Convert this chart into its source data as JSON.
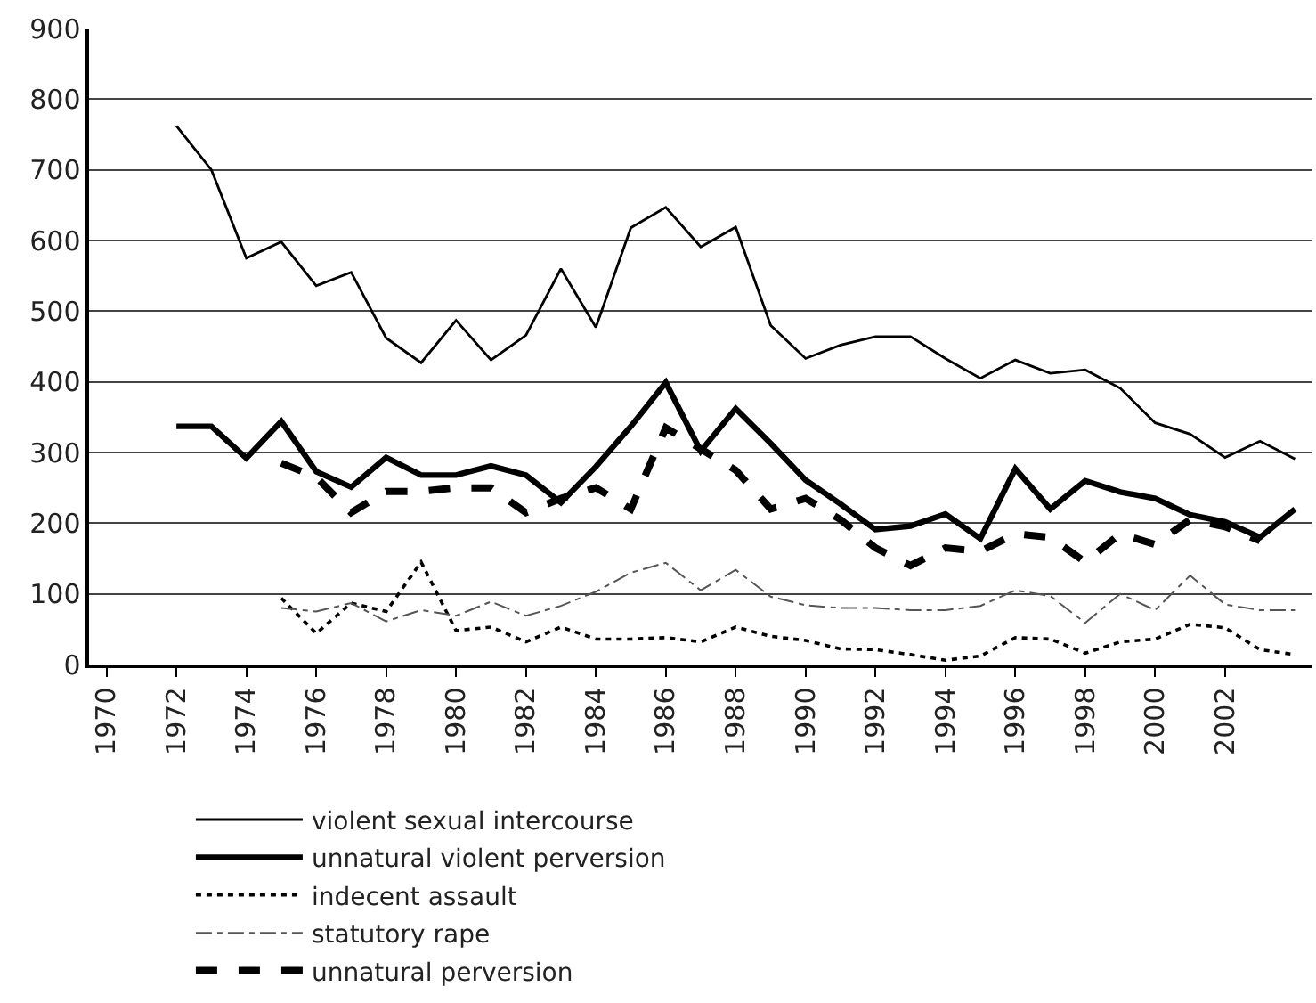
{
  "chart_data": {
    "type": "line",
    "xlim": [
      1969.5,
      2004.5
    ],
    "xticks": [
      1970,
      1972,
      1974,
      1976,
      1978,
      1980,
      1982,
      1984,
      1986,
      1988,
      1990,
      1992,
      1994,
      1996,
      1998,
      2000,
      2002
    ],
    "ylim": [
      0,
      900
    ],
    "yticks": [
      0,
      100,
      200,
      300,
      400,
      500,
      600,
      700,
      800,
      900
    ],
    "grid": "y",
    "legend": "bottom",
    "series": [
      {
        "name": "violent sexual intercourse",
        "color": "#000000",
        "line_style": "solid",
        "x": [
          1972,
          1973,
          1974,
          1975,
          1976,
          1977,
          1978,
          1979,
          1980,
          1981,
          1982,
          1983,
          1984,
          1985,
          1986,
          1987,
          1988,
          1989,
          1990,
          1991,
          1992,
          1993,
          1994,
          1995,
          1996,
          1997,
          1998,
          1999,
          2000,
          2001,
          2002,
          2003,
          2004
        ],
        "values": [
          762,
          700,
          575,
          598,
          536,
          555,
          462,
          427,
          487,
          431,
          466,
          560,
          477,
          618,
          647,
          591,
          619,
          480,
          433,
          452,
          464,
          464,
          433,
          405,
          431,
          412,
          417,
          391,
          342,
          326,
          293,
          316,
          291
        ]
      },
      {
        "name": "unnatural violent perversion",
        "color": "#000000",
        "line_style": "solid",
        "x": [
          1972,
          1973,
          1974,
          1975,
          1976,
          1977,
          1978,
          1979,
          1980,
          1981,
          1982,
          1983,
          1984,
          1985,
          1986,
          1987,
          1988,
          1989,
          1990,
          1991,
          1992,
          1993,
          1994,
          1995,
          1996,
          1997,
          1998,
          1999,
          2000,
          2001,
          2002,
          2003,
          2004
        ],
        "values": [
          337,
          337,
          292,
          344,
          273,
          251,
          293,
          268,
          268,
          281,
          268,
          229,
          280,
          337,
          399,
          302,
          362,
          313,
          261,
          227,
          191,
          196,
          213,
          178,
          277,
          220,
          260,
          244,
          235,
          212,
          202,
          180,
          220
        ]
      },
      {
        "name": "indecent assault",
        "color": "#000000",
        "line_style": "dotted",
        "x": [
          1975,
          1976,
          1977,
          1978,
          1979,
          1980,
          1981,
          1982,
          1983,
          1984,
          1985,
          1986,
          1987,
          1988,
          1989,
          1990,
          1991,
          1992,
          1993,
          1994,
          1995,
          1996,
          1997,
          1998,
          1999,
          2000,
          2001,
          2002,
          2003,
          2004
        ],
        "values": [
          94,
          44,
          87,
          75,
          145,
          48,
          53,
          32,
          53,
          36,
          36,
          38,
          32,
          53,
          40,
          34,
          22,
          21,
          14,
          6,
          12,
          38,
          36,
          16,
          32,
          36,
          57,
          52,
          21,
          14
        ]
      },
      {
        "name": "statutory rape",
        "color": "#555555",
        "line_style": "dashdot",
        "x": [
          1975,
          1976,
          1977,
          1978,
          1979,
          1980,
          1981,
          1982,
          1983,
          1984,
          1985,
          1986,
          1987,
          1988,
          1989,
          1990,
          1991,
          1992,
          1993,
          1994,
          1995,
          1996,
          1997,
          1998,
          1999,
          2000,
          2001,
          2002,
          2003,
          2004
        ],
        "values": [
          80,
          75,
          87,
          61,
          77,
          69,
          89,
          69,
          83,
          103,
          130,
          144,
          105,
          134,
          96,
          84,
          80,
          80,
          77,
          77,
          83,
          105,
          97,
          59,
          100,
          77,
          126,
          85,
          77,
          77
        ]
      },
      {
        "name": "unnatural perversion",
        "color": "#000000",
        "line_style": "dashed",
        "x": [
          1975,
          1976,
          1977,
          1978,
          1979,
          1980,
          1981,
          1982,
          1983,
          1984,
          1985,
          1986,
          1987,
          1988,
          1989,
          1990,
          1991,
          1992,
          1993,
          1994,
          1995,
          1996,
          1997,
          1998,
          1999,
          2000,
          2001,
          2002,
          2003
        ],
        "values": [
          285,
          265,
          215,
          245,
          245,
          250,
          250,
          215,
          235,
          250,
          220,
          335,
          305,
          275,
          220,
          235,
          205,
          165,
          140,
          165,
          160,
          185,
          180,
          145,
          185,
          170,
          205,
          195,
          175
        ]
      }
    ]
  }
}
